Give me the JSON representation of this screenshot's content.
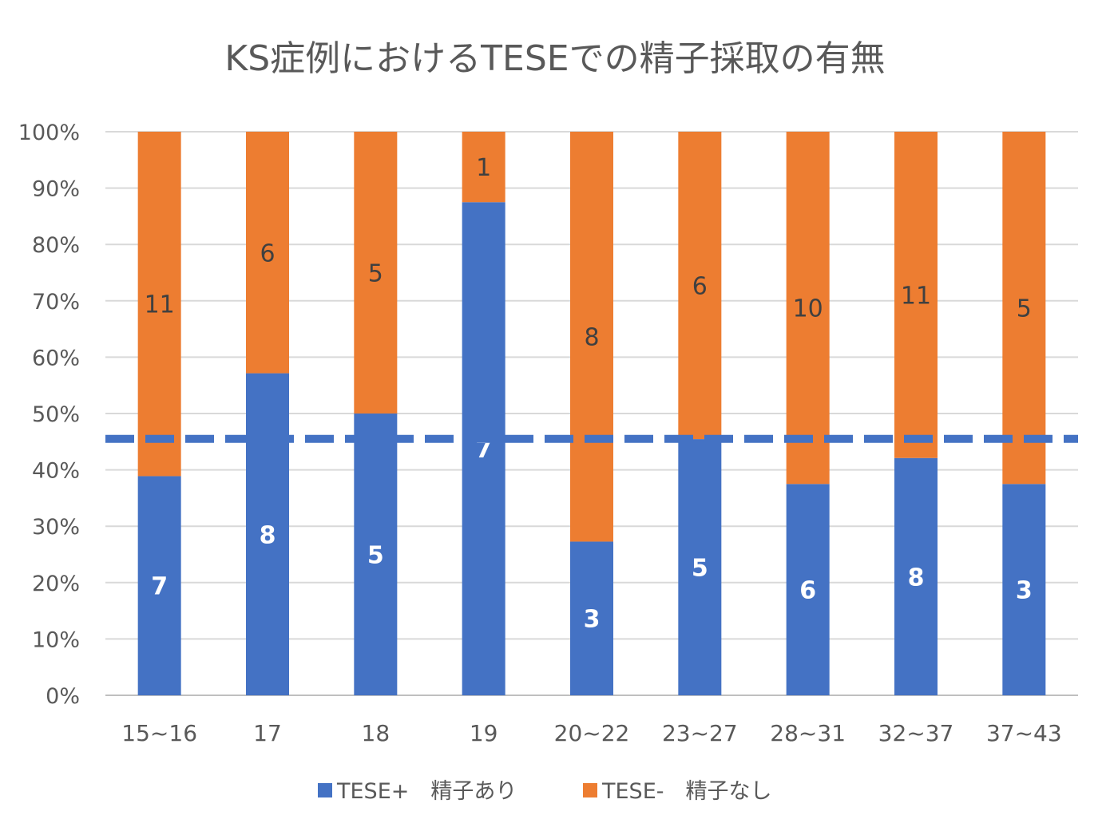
{
  "chart_data": {
    "type": "bar",
    "stacked": "percent",
    "title": "KS症例におけるTESEでの精子採取の有無",
    "xlabel": "",
    "ylabel": "",
    "ylim": [
      0,
      100
    ],
    "yticks": [
      "0%",
      "10%",
      "20%",
      "30%",
      "40%",
      "50%",
      "60%",
      "70%",
      "80%",
      "90%",
      "100%"
    ],
    "categories": [
      "15~16",
      "17",
      "18",
      "19",
      "20~22",
      "23~27",
      "28~31",
      "32~37",
      "37~43"
    ],
    "series": [
      {
        "name": "TESE+　精子あり",
        "color": "#4472c4",
        "values": [
          7,
          8,
          5,
          7,
          3,
          5,
          6,
          8,
          3
        ],
        "label_color": "#ffffff"
      },
      {
        "name": "TESE-　精子なし",
        "color": "#ed7d31",
        "values": [
          11,
          6,
          5,
          1,
          8,
          6,
          10,
          11,
          5
        ],
        "label_color": "#404040"
      }
    ],
    "reference_line": {
      "value": 45.5,
      "style": "dashed",
      "color": "#4472c4"
    },
    "grid": true,
    "legend_position": "bottom"
  }
}
